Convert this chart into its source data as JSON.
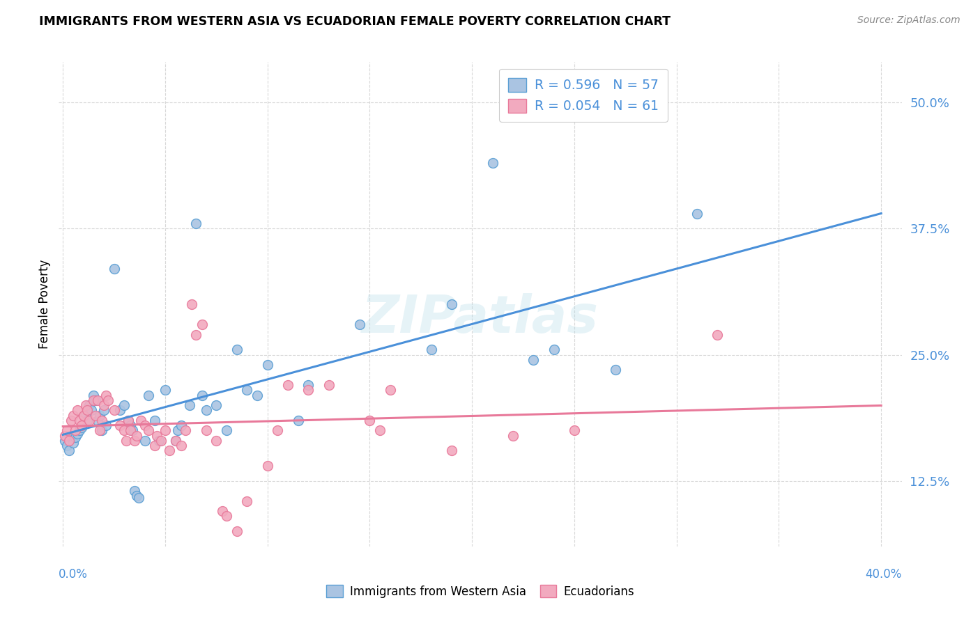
{
  "title": "IMMIGRANTS FROM WESTERN ASIA VS ECUADORIAN FEMALE POVERTY CORRELATION CHART",
  "source": "Source: ZipAtlas.com",
  "ylabel": "Female Poverty",
  "ytick_labels": [
    "12.5%",
    "25.0%",
    "37.5%",
    "50.0%"
  ],
  "ytick_values": [
    0.125,
    0.25,
    0.375,
    0.5
  ],
  "xtick_labels": [
    "0.0%",
    "40.0%"
  ],
  "xtick_values": [
    0.0,
    0.4
  ],
  "xlim": [
    -0.002,
    0.41
  ],
  "ylim": [
    0.06,
    0.54
  ],
  "legend_r1": "R = 0.596",
  "legend_n1": "N = 57",
  "legend_r2": "R = 0.054",
  "legend_n2": "N = 61",
  "blue_fill": "#aac4e2",
  "pink_fill": "#f2aabf",
  "blue_edge": "#5a9fd4",
  "pink_edge": "#e8799a",
  "line_blue": "#4a90d9",
  "line_pink": "#e8799a",
  "blue_scatter": [
    [
      0.001,
      0.165
    ],
    [
      0.002,
      0.16
    ],
    [
      0.003,
      0.155
    ],
    [
      0.004,
      0.17
    ],
    [
      0.005,
      0.163
    ],
    [
      0.006,
      0.168
    ],
    [
      0.007,
      0.172
    ],
    [
      0.008,
      0.175
    ],
    [
      0.009,
      0.178
    ],
    [
      0.01,
      0.19
    ],
    [
      0.012,
      0.185
    ],
    [
      0.013,
      0.2
    ],
    [
      0.014,
      0.195
    ],
    [
      0.015,
      0.21
    ],
    [
      0.016,
      0.205
    ],
    [
      0.017,
      0.185
    ],
    [
      0.018,
      0.19
    ],
    [
      0.019,
      0.175
    ],
    [
      0.02,
      0.195
    ],
    [
      0.021,
      0.18
    ],
    [
      0.025,
      0.335
    ],
    [
      0.028,
      0.195
    ],
    [
      0.03,
      0.2
    ],
    [
      0.032,
      0.185
    ],
    [
      0.033,
      0.18
    ],
    [
      0.034,
      0.175
    ],
    [
      0.035,
      0.115
    ],
    [
      0.036,
      0.11
    ],
    [
      0.037,
      0.108
    ],
    [
      0.04,
      0.165
    ],
    [
      0.042,
      0.21
    ],
    [
      0.045,
      0.185
    ],
    [
      0.047,
      0.165
    ],
    [
      0.05,
      0.215
    ],
    [
      0.055,
      0.165
    ],
    [
      0.056,
      0.175
    ],
    [
      0.058,
      0.18
    ],
    [
      0.062,
      0.2
    ],
    [
      0.065,
      0.38
    ],
    [
      0.068,
      0.21
    ],
    [
      0.07,
      0.195
    ],
    [
      0.075,
      0.2
    ],
    [
      0.08,
      0.175
    ],
    [
      0.085,
      0.255
    ],
    [
      0.09,
      0.215
    ],
    [
      0.095,
      0.21
    ],
    [
      0.1,
      0.24
    ],
    [
      0.115,
      0.185
    ],
    [
      0.12,
      0.22
    ],
    [
      0.145,
      0.28
    ],
    [
      0.18,
      0.255
    ],
    [
      0.19,
      0.3
    ],
    [
      0.21,
      0.44
    ],
    [
      0.23,
      0.245
    ],
    [
      0.24,
      0.255
    ],
    [
      0.27,
      0.235
    ],
    [
      0.31,
      0.39
    ]
  ],
  "pink_scatter": [
    [
      0.001,
      0.17
    ],
    [
      0.002,
      0.175
    ],
    [
      0.003,
      0.165
    ],
    [
      0.004,
      0.185
    ],
    [
      0.005,
      0.19
    ],
    [
      0.006,
      0.175
    ],
    [
      0.007,
      0.195
    ],
    [
      0.008,
      0.185
    ],
    [
      0.009,
      0.18
    ],
    [
      0.01,
      0.19
    ],
    [
      0.011,
      0.2
    ],
    [
      0.012,
      0.195
    ],
    [
      0.013,
      0.185
    ],
    [
      0.015,
      0.205
    ],
    [
      0.016,
      0.19
    ],
    [
      0.017,
      0.205
    ],
    [
      0.018,
      0.175
    ],
    [
      0.019,
      0.185
    ],
    [
      0.02,
      0.2
    ],
    [
      0.021,
      0.21
    ],
    [
      0.022,
      0.205
    ],
    [
      0.025,
      0.195
    ],
    [
      0.028,
      0.18
    ],
    [
      0.03,
      0.175
    ],
    [
      0.031,
      0.165
    ],
    [
      0.032,
      0.185
    ],
    [
      0.033,
      0.175
    ],
    [
      0.035,
      0.165
    ],
    [
      0.036,
      0.17
    ],
    [
      0.038,
      0.185
    ],
    [
      0.04,
      0.18
    ],
    [
      0.042,
      0.175
    ],
    [
      0.045,
      0.16
    ],
    [
      0.046,
      0.17
    ],
    [
      0.048,
      0.165
    ],
    [
      0.05,
      0.175
    ],
    [
      0.052,
      0.155
    ],
    [
      0.055,
      0.165
    ],
    [
      0.058,
      0.16
    ],
    [
      0.06,
      0.175
    ],
    [
      0.063,
      0.3
    ],
    [
      0.065,
      0.27
    ],
    [
      0.068,
      0.28
    ],
    [
      0.07,
      0.175
    ],
    [
      0.075,
      0.165
    ],
    [
      0.078,
      0.095
    ],
    [
      0.08,
      0.09
    ],
    [
      0.085,
      0.075
    ],
    [
      0.09,
      0.105
    ],
    [
      0.1,
      0.14
    ],
    [
      0.105,
      0.175
    ],
    [
      0.11,
      0.22
    ],
    [
      0.12,
      0.215
    ],
    [
      0.13,
      0.22
    ],
    [
      0.15,
      0.185
    ],
    [
      0.155,
      0.175
    ],
    [
      0.16,
      0.215
    ],
    [
      0.19,
      0.155
    ],
    [
      0.22,
      0.17
    ],
    [
      0.25,
      0.175
    ],
    [
      0.32,
      0.27
    ]
  ],
  "watermark": "ZIPatlas",
  "background_color": "#ffffff",
  "grid_color": "#d8d8d8"
}
